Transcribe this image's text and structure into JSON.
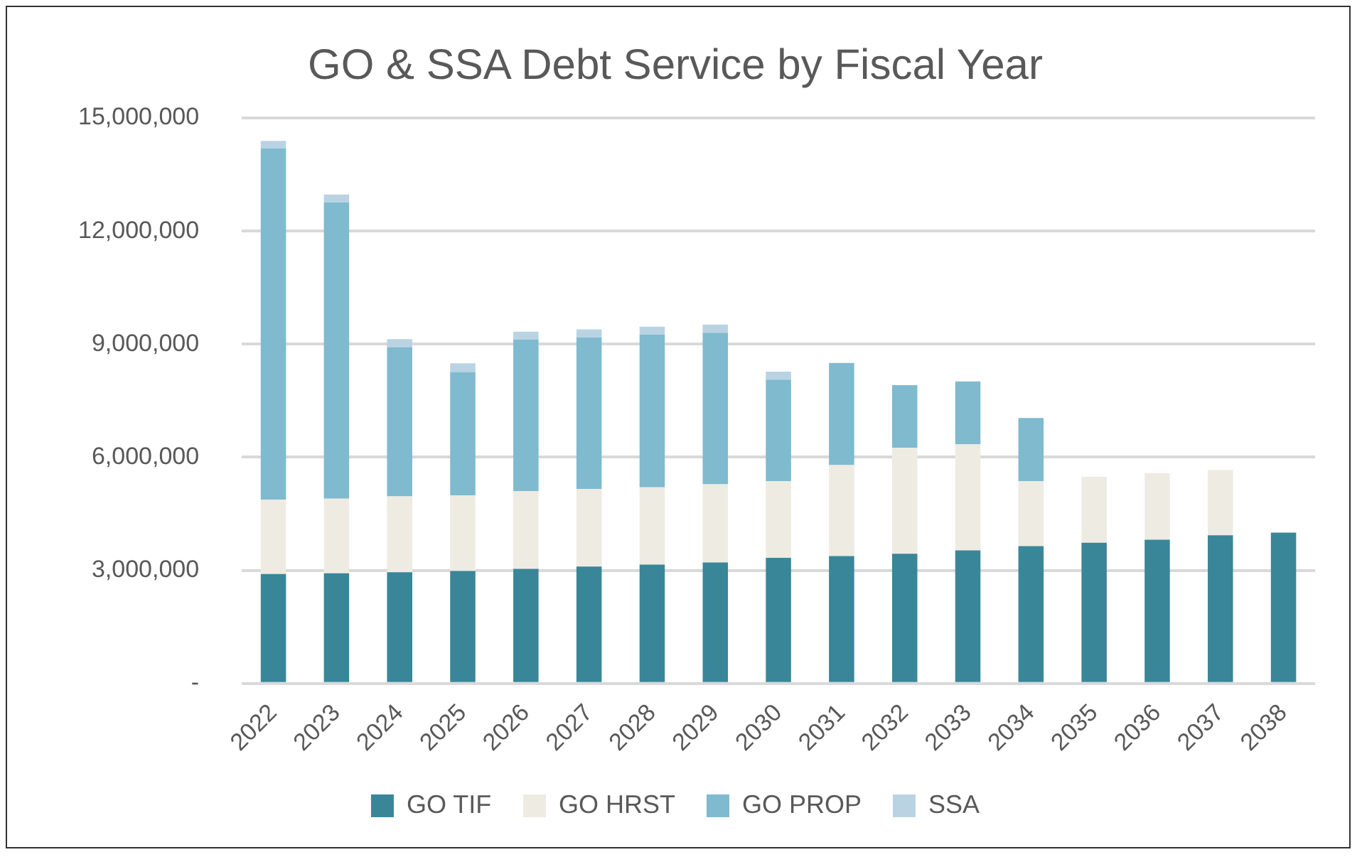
{
  "chart_data": {
    "type": "bar",
    "title": "GO & SSA Debt Service by Fiscal Year",
    "stacked": true,
    "grid": "y",
    "legend": "bottom",
    "categories": [
      "2022",
      "2023",
      "2024",
      "2025",
      "2026",
      "2027",
      "2028",
      "2029",
      "2030",
      "2031",
      "2032",
      "2033",
      "2034",
      "2035",
      "2036",
      "2037",
      "2038"
    ],
    "series": [
      {
        "name": "GO TIF",
        "color": "#3a8699",
        "values": [
          2900000,
          2920000,
          2950000,
          2980000,
          3040000,
          3100000,
          3150000,
          3210000,
          3330000,
          3380000,
          3440000,
          3530000,
          3640000,
          3730000,
          3810000,
          3930000,
          4000000
        ]
      },
      {
        "name": "GO HRST",
        "color": "#eeebe2",
        "values": [
          1970000,
          1980000,
          2010000,
          2010000,
          2060000,
          2060000,
          2050000,
          2070000,
          2030000,
          2410000,
          2810000,
          2810000,
          1720000,
          1750000,
          1770000,
          1730000,
          null
        ]
      },
      {
        "name": "GO PROP",
        "color": "#7fbacf",
        "values": [
          9320000,
          7860000,
          3960000,
          3270000,
          4020000,
          4020000,
          4050000,
          4020000,
          2700000,
          2710000,
          1660000,
          1670000,
          1680000,
          null,
          null,
          null,
          null
        ]
      },
      {
        "name": "SSA",
        "color": "#b9d3e3",
        "values": [
          200000,
          210000,
          210000,
          230000,
          210000,
          210000,
          210000,
          220000,
          210000,
          null,
          null,
          null,
          null,
          null,
          null,
          null,
          null
        ]
      }
    ],
    "ylim": [
      0,
      15000000
    ],
    "yticks": [
      {
        "value": 0,
        "label": "-"
      },
      {
        "value": 3000000,
        "label": "3,000,000"
      },
      {
        "value": 6000000,
        "label": "6,000,000"
      },
      {
        "value": 9000000,
        "label": "9,000,000"
      },
      {
        "value": 12000000,
        "label": "12,000,000"
      },
      {
        "value": 15000000,
        "label": "15,000,000"
      }
    ]
  }
}
